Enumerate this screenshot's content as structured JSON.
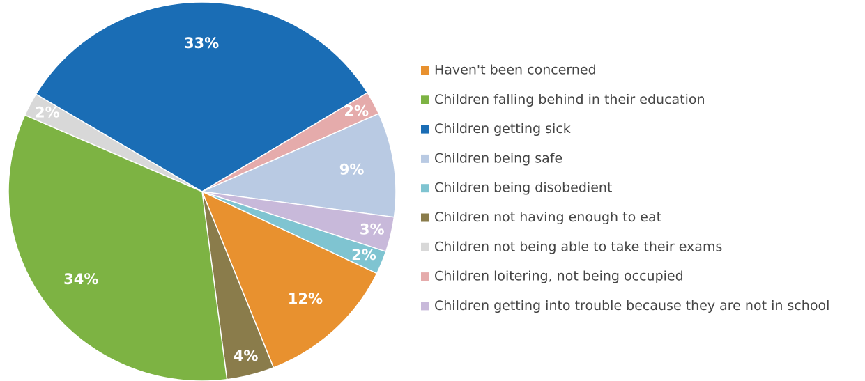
{
  "chart_data": {
    "type": "pie",
    "categories": [
      "Haven't been concerned",
      "Children falling behind in their education",
      "Children getting sick",
      "Children being safe",
      "Children being disobedient",
      "Children not having enough to eat",
      "Children not being able to take their exams",
      "Children loitering, not being occupied",
      "Children getting into trouble because they are not in school"
    ],
    "values": [
      12,
      34,
      33,
      9,
      2,
      4,
      2,
      2,
      3
    ],
    "value_labels": [
      "12%",
      "34%",
      "33%",
      "9%",
      "2%",
      "4%",
      "2%",
      "2%",
      "3%"
    ],
    "colors": [
      "#e8912f",
      "#7db343",
      "#1a6db5",
      "#b9cae3",
      "#7fc4d1",
      "#8a7c4b",
      "#d8d8d8",
      "#e5abab",
      "#c8b9da"
    ]
  }
}
